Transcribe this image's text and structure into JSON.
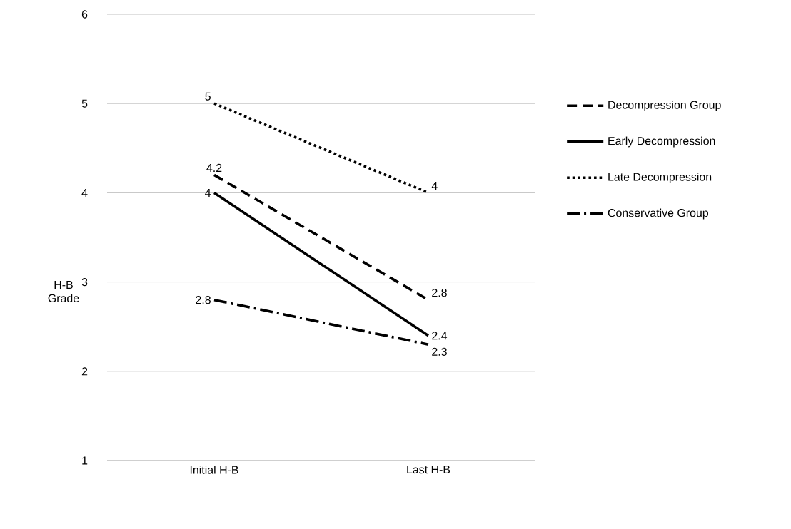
{
  "chart_data": {
    "type": "line",
    "ylabel": "H-B Grade",
    "categories": [
      "Initial H-B",
      "Last H-B"
    ],
    "series": [
      {
        "name": "Decompression Group",
        "color": "#000000",
        "line_style": "dashed",
        "values": [
          4.2,
          2.8
        ]
      },
      {
        "name": "Early Decompression",
        "color": "#000000",
        "line_style": "solid",
        "values": [
          4,
          2.4
        ]
      },
      {
        "name": "Late Decompression",
        "color": "#000000",
        "line_style": "dotted",
        "values": [
          5,
          4
        ]
      },
      {
        "name": "Conservative Group",
        "color": "#000000",
        "line_style": "dashdot",
        "values": [
          2.8,
          2.3
        ]
      }
    ],
    "ylim": [
      1,
      6
    ],
    "yticks": [
      1,
      2,
      3,
      4,
      5,
      6
    ],
    "grid": "y",
    "legend": "right",
    "data_labels": true
  }
}
